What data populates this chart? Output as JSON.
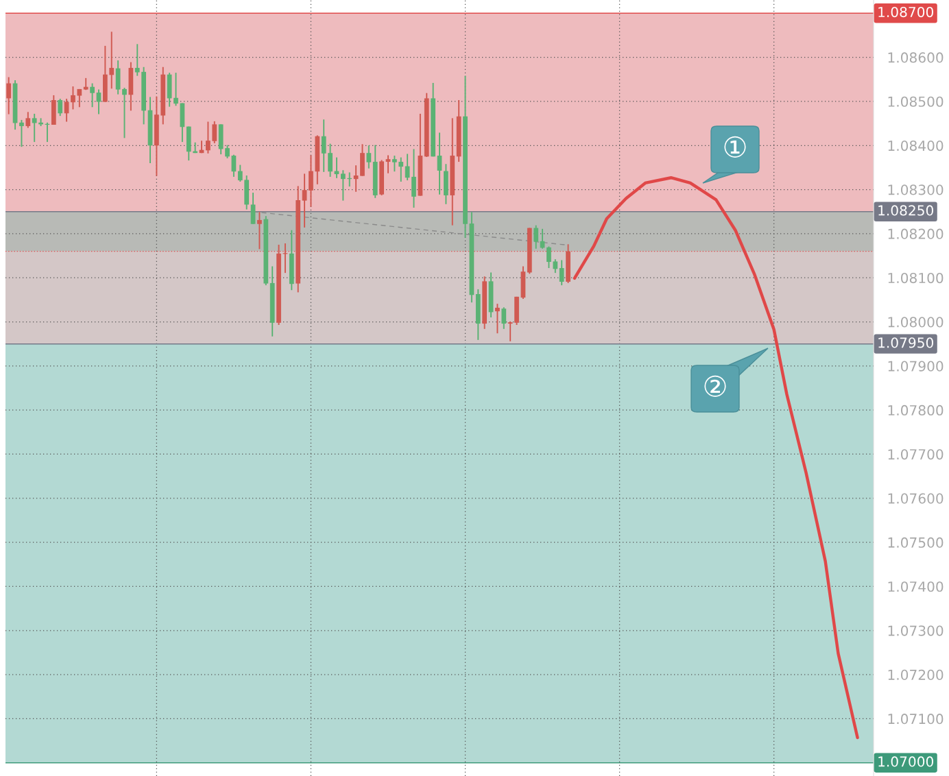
{
  "chart_data": {
    "type": "candlestick",
    "categories": [
      null,
      null,
      null,
      null,
      null,
      null,
      null,
      null,
      null,
      null,
      null,
      null,
      null,
      null,
      null,
      null,
      null,
      null,
      null,
      null,
      null,
      null,
      null,
      null,
      null,
      null,
      null,
      null,
      null,
      null,
      null,
      null,
      null,
      null,
      null,
      null,
      null,
      null,
      null,
      null,
      null,
      null,
      null,
      null,
      null,
      null,
      null,
      null,
      null,
      null,
      null,
      null,
      null,
      null,
      null,
      null,
      null,
      null,
      null,
      null,
      null,
      null,
      null,
      null,
      null,
      null,
      null,
      null,
      null,
      null,
      null,
      null,
      null,
      null,
      null,
      null,
      null,
      null,
      null,
      null,
      null,
      null,
      null,
      null,
      null,
      null,
      null,
      null,
      null,
      null,
      null,
      null,
      null,
      null,
      null,
      null,
      null,
      null,
      null,
      null,
      null,
      null,
      null,
      null,
      null,
      null,
      null,
      null,
      null,
      null,
      null,
      null,
      null,
      null,
      null,
      null,
      null,
      null,
      null,
      null,
      null,
      null,
      null,
      null,
      null,
      null,
      null,
      null,
      null,
      null,
      null,
      null,
      null,
      null,
      null
    ],
    "ohlc": [
      [
        1.08507,
        1.08555,
        1.08471,
        1.08541
      ],
      [
        1.08541,
        1.08548,
        1.08436,
        1.08451
      ],
      [
        1.08452,
        1.08458,
        1.08397,
        1.08444
      ],
      [
        1.08444,
        1.08476,
        1.0844,
        1.08462
      ],
      [
        1.08462,
        1.08472,
        1.08408,
        1.08451
      ],
      [
        1.08452,
        1.08462,
        1.08444,
        1.08448
      ],
      [
        1.08449,
        1.08452,
        1.08408,
        1.08447
      ],
      [
        1.08447,
        1.08514,
        1.08447,
        1.08503
      ],
      [
        1.08503,
        1.08506,
        1.08467,
        1.08473
      ],
      [
        1.08473,
        1.08506,
        1.08454,
        1.08499
      ],
      [
        1.08498,
        1.08534,
        1.08482,
        1.08514
      ],
      [
        1.08513,
        1.08528,
        1.08487,
        1.08528
      ],
      [
        1.08527,
        1.08553,
        1.08526,
        1.08533
      ],
      [
        1.08533,
        1.08541,
        1.08487,
        1.08519
      ],
      [
        1.0852,
        1.08527,
        1.08471,
        1.08499
      ],
      [
        1.08499,
        1.08626,
        1.08499,
        1.08561
      ],
      [
        1.0856,
        1.08658,
        1.08529,
        1.08576
      ],
      [
        1.08575,
        1.08593,
        1.08516,
        1.08527
      ],
      [
        1.08528,
        1.08531,
        1.08417,
        1.08515
      ],
      [
        1.08515,
        1.08589,
        1.08479,
        1.08576
      ],
      [
        1.08576,
        1.0863,
        1.08558,
        1.08566
      ],
      [
        1.08567,
        1.08578,
        1.08448,
        1.08479
      ],
      [
        1.0848,
        1.0851,
        1.0836,
        1.084
      ],
      [
        1.084,
        1.08511,
        1.08331,
        1.0847
      ],
      [
        1.08468,
        1.08578,
        1.08448,
        1.08561
      ],
      [
        1.08561,
        1.08565,
        1.08488,
        1.08507
      ],
      [
        1.08508,
        1.08565,
        1.0849,
        1.08495
      ],
      [
        1.08496,
        1.08496,
        1.08408,
        1.08442
      ],
      [
        1.08443,
        1.08443,
        1.08366,
        1.08386
      ],
      [
        1.08387,
        1.08407,
        1.08383,
        1.08383
      ],
      [
        1.08383,
        1.08411,
        1.08383,
        1.0839
      ],
      [
        1.08389,
        1.08454,
        1.08382,
        1.08411
      ],
      [
        1.0841,
        1.08455,
        1.08405,
        1.08448
      ],
      [
        1.08448,
        1.08448,
        1.0838,
        1.08392
      ],
      [
        1.08394,
        1.08401,
        1.08371,
        1.08375
      ],
      [
        1.08377,
        1.08379,
        1.08329,
        1.08341
      ],
      [
        1.08342,
        1.08356,
        1.08318,
        1.08321
      ],
      [
        1.08322,
        1.08332,
        1.08255,
        1.08266
      ],
      [
        1.08266,
        1.08293,
        1.08222,
        1.08222
      ],
      [
        1.08222,
        1.08249,
        1.08165,
        1.08231
      ],
      [
        1.08233,
        1.0824,
        1.08083,
        1.08087
      ],
      [
        1.08088,
        1.08126,
        1.07967,
        1.07998
      ],
      [
        1.07998,
        1.08175,
        1.07993,
        1.08155
      ],
      [
        1.08154,
        1.08178,
        1.08111,
        1.08156
      ],
      [
        1.08155,
        1.08208,
        1.08072,
        1.08086
      ],
      [
        1.08087,
        1.08308,
        1.08067,
        1.08276
      ],
      [
        1.08275,
        1.08336,
        1.08214,
        1.08299
      ],
      [
        1.08298,
        1.08378,
        1.08261,
        1.08342
      ],
      [
        1.08341,
        1.08423,
        1.08312,
        1.08421
      ],
      [
        1.08421,
        1.08459,
        1.0834,
        1.08382
      ],
      [
        1.08383,
        1.08404,
        1.08329,
        1.08341
      ],
      [
        1.08342,
        1.08373,
        1.08326,
        1.08335
      ],
      [
        1.08336,
        1.08344,
        1.08275,
        1.08324
      ],
      [
        1.08326,
        1.08339,
        1.08307,
        1.08324
      ],
      [
        1.08324,
        1.08355,
        1.08295,
        1.08332
      ],
      [
        1.08331,
        1.08403,
        1.08331,
        1.08383
      ],
      [
        1.08383,
        1.084,
        1.08348,
        1.08362
      ],
      [
        1.08363,
        1.08401,
        1.08281,
        1.08287
      ],
      [
        1.08289,
        1.08367,
        1.08287,
        1.08364
      ],
      [
        1.08363,
        1.08378,
        1.08337,
        1.08369
      ],
      [
        1.08369,
        1.08377,
        1.08341,
        1.08362
      ],
      [
        1.08363,
        1.08373,
        1.08318,
        1.08352
      ],
      [
        1.08353,
        1.08381,
        1.08321,
        1.08327
      ],
      [
        1.08329,
        1.08392,
        1.08259,
        1.08284
      ],
      [
        1.08286,
        1.08472,
        1.08286,
        1.08377
      ],
      [
        1.08375,
        1.08519,
        1.08374,
        1.08507
      ],
      [
        1.08507,
        1.08542,
        1.08375,
        1.08375
      ],
      [
        1.08377,
        1.08429,
        1.08289,
        1.08343
      ],
      [
        1.08342,
        1.08358,
        1.08267,
        1.08287
      ],
      [
        1.08287,
        1.08462,
        1.08219,
        1.08377
      ],
      [
        1.08375,
        1.08503,
        1.08363,
        1.08466
      ],
      [
        1.08466,
        1.08558,
        1.08191,
        1.08222
      ],
      [
        1.08223,
        1.08249,
        1.08044,
        1.08061
      ],
      [
        1.08063,
        1.08074,
        1.07959,
        1.07996
      ],
      [
        1.07996,
        1.08103,
        1.07984,
        1.08092
      ],
      [
        1.08092,
        1.08112,
        1.0801,
        1.08022
      ],
      [
        1.08024,
        1.08041,
        1.07974,
        1.08032
      ],
      [
        1.0803,
        1.08033,
        1.07984,
        1.07996
      ],
      [
        1.07996,
        1.08001,
        1.07956,
        1.07999
      ],
      [
        1.07998,
        1.08057,
        1.07993,
        1.08057
      ],
      [
        1.08055,
        1.08126,
        1.08052,
        1.08114
      ],
      [
        1.08112,
        1.08213,
        1.08109,
        1.08213
      ],
      [
        1.08213,
        1.08219,
        1.08166,
        1.08182
      ],
      [
        1.08183,
        1.08211,
        1.08166,
        1.08168
      ],
      [
        1.08169,
        1.08171,
        1.08122,
        1.08136
      ],
      [
        1.08137,
        1.08142,
        1.08111,
        1.0812
      ],
      [
        1.08122,
        1.0814,
        1.08083,
        1.08091
      ],
      [
        1.08091,
        1.08176,
        1.08088,
        1.0816
      ],
      null,
      null,
      null,
      null,
      null,
      null,
      null,
      null,
      null,
      null,
      null,
      null,
      null,
      null,
      null,
      null,
      null,
      null,
      null,
      null,
      null,
      null,
      null,
      null,
      null,
      null,
      null,
      null,
      null,
      null,
      null,
      null,
      null,
      null,
      null,
      null,
      null,
      null,
      null,
      null,
      null,
      null,
      null,
      null,
      null,
      null,
      null
    ],
    "colors": [
      "#d05a52",
      "#5bb274",
      "#5bb274",
      "#d05a52",
      "#5bb274",
      "#5bb274",
      "#5bb274",
      "#d05a52",
      "#5bb274",
      "#d05a52",
      "#d05a52",
      "#d05a52",
      "#d05a52",
      "#5bb274",
      "#5bb274",
      "#d05a52",
      "#d05a52",
      "#5bb274",
      "#5bb274",
      "#d05a52",
      "#5bb274",
      "#5bb274",
      "#5bb274",
      "#d05a52",
      "#d05a52",
      "#5bb274",
      "#5bb274",
      "#5bb274",
      "#5bb274",
      "#5bb274",
      "#d05a52",
      "#d05a52",
      "#d05a52",
      "#5bb274",
      "#5bb274",
      "#5bb274",
      "#5bb274",
      "#5bb274",
      "#5bb274",
      "#d05a52",
      "#5bb274",
      "#5bb274",
      "#d05a52",
      "#d05a52",
      "#5bb274",
      "#d05a52",
      "#d05a52",
      "#d05a52",
      "#d05a52",
      "#5bb274",
      "#5bb274",
      "#5bb274",
      "#5bb274",
      "#5bb274",
      "#d05a52",
      "#d05a52",
      "#5bb274",
      "#5bb274",
      "#d05a52",
      "#d05a52",
      "#5bb274",
      "#5bb274",
      "#5bb274",
      "#5bb274",
      "#d05a52",
      "#d05a52",
      "#5bb274",
      "#5bb274",
      "#5bb274",
      "#d05a52",
      "#d05a52",
      "#5bb274",
      "#5bb274",
      "#5bb274",
      "#d05a52",
      "#5bb274",
      "#d05a52",
      "#5bb274",
      "#d05a52",
      "#d05a52",
      "#d05a52",
      "#d05a52",
      "#5bb274",
      "#5bb274",
      "#5bb274",
      "#5bb274",
      "#5bb274",
      "#d05a52",
      null,
      null,
      null,
      null,
      null,
      null,
      null,
      null,
      null,
      null,
      null,
      null,
      null,
      null,
      null,
      null,
      null,
      null,
      null,
      null,
      null,
      null,
      null,
      null,
      null,
      null,
      null,
      null,
      null,
      null,
      null,
      null,
      null,
      null,
      null,
      null,
      null,
      null,
      null,
      null,
      null,
      null,
      null,
      null,
      null,
      null,
      null
    ],
    "series": [
      {
        "type": "line",
        "color": "#e04848",
        "line_style": "solid",
        "values": [
          null,
          null,
          null,
          null,
          null,
          null,
          null,
          null,
          null,
          null,
          null,
          null,
          null,
          null,
          null,
          null,
          null,
          null,
          null,
          null,
          null,
          null,
          null,
          null,
          null,
          null,
          null,
          null,
          null,
          null,
          null,
          null,
          null,
          null,
          null,
          null,
          null,
          null,
          null,
          null,
          null,
          null,
          null,
          null,
          null,
          null,
          null,
          null,
          null,
          null,
          null,
          null,
          null,
          null,
          null,
          null,
          null,
          null,
          null,
          null,
          null,
          null,
          null,
          null,
          null,
          null,
          null,
          null,
          null,
          null,
          null,
          null,
          null,
          null,
          null,
          null,
          null,
          null,
          null,
          null,
          null,
          null,
          null,
          null,
          null,
          null,
          null,
          null,
          1.08099,
          null,
          null,
          1.08172,
          null,
          1.08234,
          null,
          null,
          1.0828,
          null,
          null,
          1.08315,
          null,
          null,
          null,
          1.08327,
          null,
          null,
          1.08315,
          null,
          null,
          null,
          1.08277,
          null,
          null,
          1.08208,
          null,
          null,
          1.08107,
          null,
          null,
          1.07983,
          null,
          1.07836,
          null,
          null,
          1.07658,
          null,
          null,
          1.07457,
          null,
          1.07248,
          null,
          null,
          1.07057,
          null,
          null
        ]
      },
      {
        "type": "line",
        "color": "#8a8a8a",
        "line_style": "dashed",
        "values": [
          null,
          null,
          null,
          null,
          null,
          null,
          null,
          null,
          null,
          null,
          null,
          null,
          null,
          null,
          null,
          null,
          null,
          null,
          null,
          null,
          null,
          null,
          null,
          null,
          null,
          null,
          null,
          null,
          null,
          null,
          null,
          null,
          null,
          null,
          null,
          null,
          null,
          null,
          1.0825,
          null,
          null,
          null,
          null,
          null,
          null,
          null,
          null,
          null,
          null,
          null,
          null,
          null,
          null,
          null,
          null,
          null,
          null,
          null,
          null,
          null,
          null,
          null,
          null,
          null,
          null,
          null,
          null,
          null,
          null,
          null,
          null,
          null,
          null,
          null,
          null,
          null,
          null,
          null,
          null,
          null,
          null,
          null,
          null,
          null,
          null,
          null,
          null,
          1.08174,
          null,
          null,
          null,
          null,
          null,
          null,
          null,
          null,
          null,
          null,
          null,
          null,
          null,
          null,
          null,
          null,
          null,
          null,
          null,
          null,
          null,
          null,
          null,
          null,
          null,
          null,
          null,
          null,
          null,
          null,
          null,
          null,
          null,
          null,
          null,
          null,
          null,
          null,
          null,
          null,
          null,
          null,
          null,
          null,
          null,
          null,
          null
        ]
      }
    ],
    "ylim": [
      1.0697,
      1.0873
    ],
    "yticks": [
      {
        "value": 1.071,
        "label": "1.07100"
      },
      {
        "value": 1.072,
        "label": "1.07200"
      },
      {
        "value": 1.073,
        "label": "1.07300"
      },
      {
        "value": 1.074,
        "label": "1.07400"
      },
      {
        "value": 1.075,
        "label": "1.07500"
      },
      {
        "value": 1.076,
        "label": "1.07600"
      },
      {
        "value": 1.077,
        "label": "1.07700"
      },
      {
        "value": 1.078,
        "label": "1.07800"
      },
      {
        "value": 1.079,
        "label": "1.07900"
      },
      {
        "value": 1.08,
        "label": "1.08000"
      },
      {
        "value": 1.081,
        "label": "1.08100"
      },
      {
        "value": 1.082,
        "label": "1.08200"
      },
      {
        "value": 1.083,
        "label": "1.08300"
      },
      {
        "value": 1.084,
        "label": "1.08400"
      },
      {
        "value": 1.085,
        "label": "1.08500"
      },
      {
        "value": 1.086,
        "label": "1.08600"
      }
    ],
    "bands": [
      {
        "axis": "y",
        "from": 1.0825,
        "to": 1.087,
        "color": "#eebbbe"
      },
      {
        "axis": "y",
        "from": 1.0795,
        "to": 1.0825,
        "color": "#d4c7c7"
      },
      {
        "axis": "y",
        "from": 1.0816,
        "to": 1.0825,
        "color": "#b8bab6"
      },
      {
        "axis": "y",
        "from": 1.07,
        "to": 1.0795,
        "color": "#b3d9d3"
      }
    ],
    "ref_lines": [
      {
        "axis": "y",
        "value": 1.087,
        "label": "1.08700",
        "color": "#e04a4a"
      },
      {
        "axis": "y",
        "value": 1.0825,
        "label": "1.08250",
        "color": "#767987"
      },
      {
        "axis": "y",
        "value": 1.0816,
        "color": "#e05050",
        "line_style": "dotted"
      },
      {
        "axis": "y",
        "value": 1.0795,
        "label": "1.07950",
        "color": "#767987"
      },
      {
        "axis": "y",
        "value": 1.07,
        "label": "1.07000",
        "color": "#3d9a7a"
      }
    ],
    "annotations": [
      "①",
      "②"
    ],
    "grid": true
  }
}
